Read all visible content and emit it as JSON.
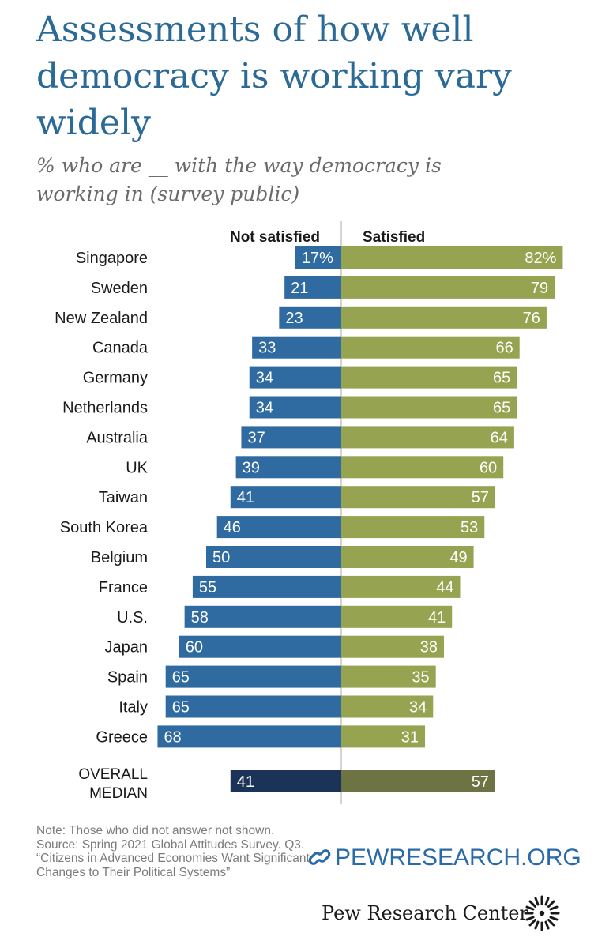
{
  "title": "Assessments of how well democracy is working vary widely",
  "subtitle": "% who are __ with the way democracy is working in (survey public)",
  "chart_data": {
    "type": "bar",
    "orientation": "horizontal-diverging",
    "series": [
      {
        "name": "Not satisfied",
        "values": [
          17,
          21,
          23,
          33,
          34,
          34,
          37,
          39,
          41,
          46,
          50,
          55,
          58,
          60,
          65,
          65,
          68
        ],
        "labels": [
          "17%",
          "21",
          "23",
          "33",
          "34",
          "34",
          "37",
          "39",
          "41",
          "46",
          "50",
          "55",
          "58",
          "60",
          "65",
          "65",
          "68"
        ],
        "color": "#2f6aa1"
      },
      {
        "name": "Satisfied",
        "values": [
          82,
          79,
          76,
          66,
          65,
          65,
          64,
          60,
          57,
          53,
          49,
          44,
          41,
          38,
          35,
          34,
          31
        ],
        "labels": [
          "82%",
          "79",
          "76",
          "66",
          "65",
          "65",
          "64",
          "60",
          "57",
          "53",
          "49",
          "44",
          "41",
          "38",
          "35",
          "34",
          "31"
        ],
        "color": "#96a350"
      }
    ],
    "categories": [
      "Singapore",
      "Sweden",
      "New Zealand",
      "Canada",
      "Germany",
      "Netherlands",
      "Australia",
      "UK",
      "Taiwan",
      "South Korea",
      "Belgium",
      "France",
      "U.S.",
      "Japan",
      "Spain",
      "Italy",
      "Greece"
    ],
    "summary": {
      "label_lines": [
        "OVERALL",
        "MEDIAN"
      ],
      "not_satisfied": 41,
      "not_satisfied_label": "41",
      "satisfied": 57,
      "satisfied_label": "57",
      "colors": {
        "not_satisfied": "#1c3358",
        "satisfied": "#6d7342"
      }
    },
    "legend": "top-center",
    "title": "Assessments of how well democracy is working vary widely",
    "xlabel": "",
    "ylabel": ""
  },
  "notes": [
    "Note: Those who did not answer not shown.",
    "Source: Spring 2021 Global Attitudes Survey. Q3.",
    "“Citizens in Advanced Economies Want Significant Changes to Their Political Systems”"
  ],
  "branding": {
    "url": "PEWRESEARCH.ORG",
    "name": "Pew Research Center"
  }
}
